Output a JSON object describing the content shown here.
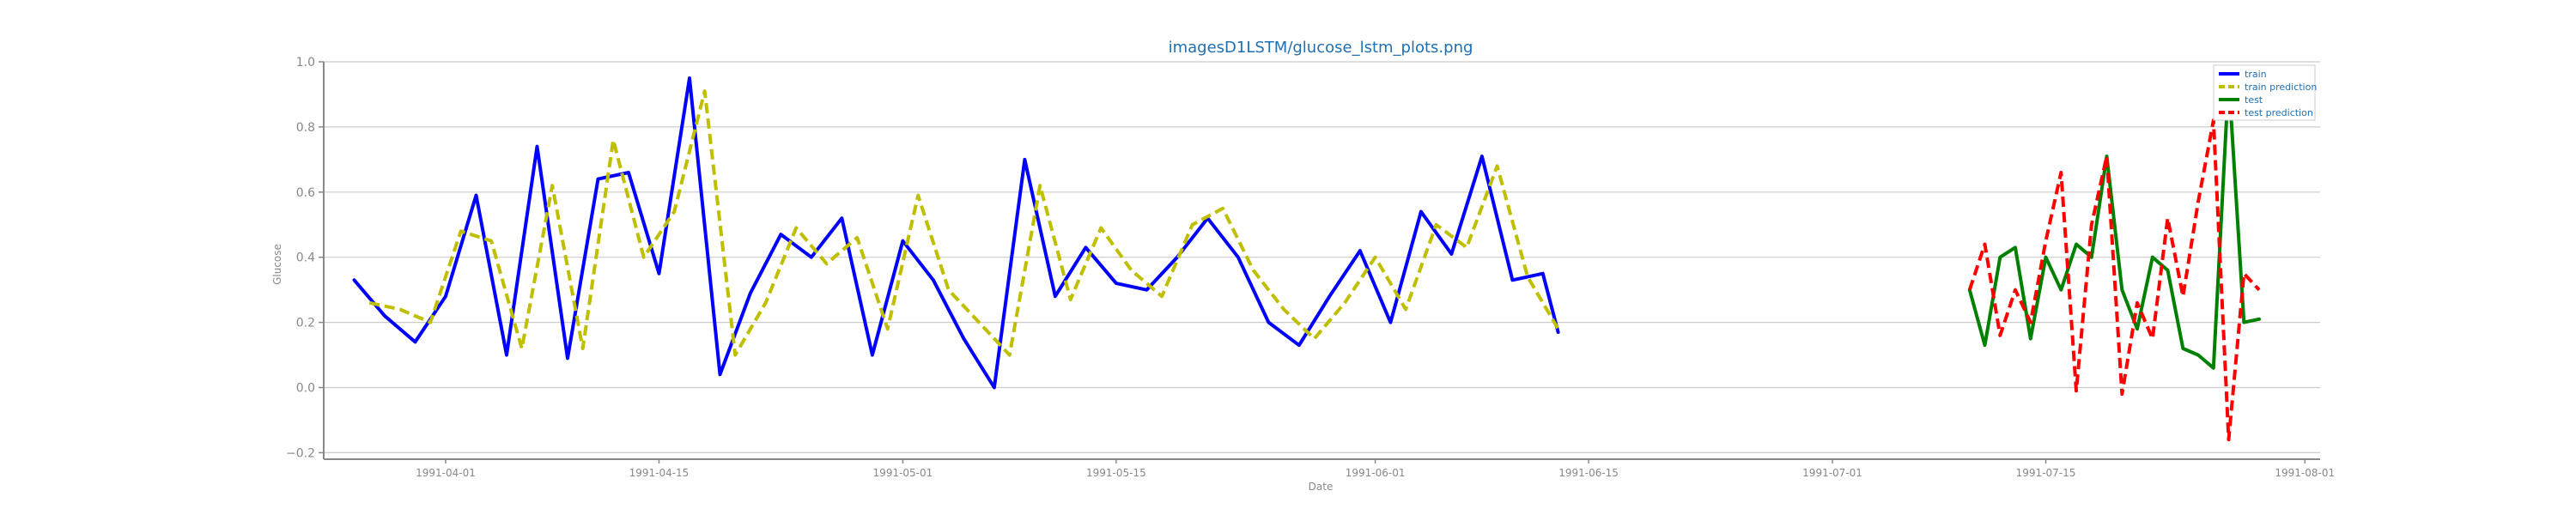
{
  "chart_data": {
    "type": "line",
    "title": "imagesD1LSTM/glucose_lstm_plots.png",
    "xlabel": "Date",
    "ylabel": "Glucose",
    "xlim": [
      "1991-03-24",
      "1991-08-02"
    ],
    "ylim": [
      -0.22,
      1.0
    ],
    "grid": "horizontal",
    "legend_position": "top-right",
    "x_tick_labels": [
      "1991-04-01",
      "1991-04-15",
      "1991-05-01",
      "1991-05-15",
      "1991-06-01",
      "1991-06-15",
      "1991-07-01",
      "1991-07-15",
      "1991-08-01"
    ],
    "y_ticks": [
      -0.2,
      0.0,
      0.2,
      0.4,
      0.6,
      0.8,
      1.0
    ],
    "y_tick_labels": [
      "−0.2",
      "0.0",
      "0.2",
      "0.4",
      "0.6",
      "0.8",
      "1.0"
    ],
    "series": [
      {
        "name": "train",
        "color": "#0000ff",
        "style": "solid",
        "x": [
          "1991-03-26",
          "1991-03-28",
          "1991-03-30",
          "1991-04-01",
          "1991-04-03",
          "1991-04-05",
          "1991-04-07",
          "1991-04-09",
          "1991-04-11",
          "1991-04-13",
          "1991-04-15",
          "1991-04-17",
          "1991-04-19",
          "1991-04-21",
          "1991-04-23",
          "1991-04-25",
          "1991-04-27",
          "1991-04-29",
          "1991-05-01",
          "1991-05-03",
          "1991-05-05",
          "1991-05-07",
          "1991-05-09",
          "1991-05-11",
          "1991-05-13",
          "1991-05-15",
          "1991-05-17",
          "1991-05-19",
          "1991-05-21",
          "1991-05-23",
          "1991-05-25",
          "1991-05-27",
          "1991-05-29",
          "1991-05-31",
          "1991-06-02",
          "1991-06-04",
          "1991-06-06",
          "1991-06-08",
          "1991-06-10",
          "1991-06-12",
          "1991-06-13"
        ],
        "y": [
          0.33,
          0.22,
          0.14,
          0.28,
          0.59,
          0.1,
          0.74,
          0.09,
          0.64,
          0.66,
          0.35,
          0.95,
          0.04,
          0.29,
          0.47,
          0.4,
          0.52,
          0.1,
          0.45,
          0.33,
          0.15,
          0.0,
          0.7,
          0.28,
          0.43,
          0.32,
          0.3,
          0.4,
          0.52,
          0.4,
          0.2,
          0.13,
          0.28,
          0.42,
          0.2,
          0.54,
          0.41,
          0.71,
          0.33,
          0.35,
          0.17
        ]
      },
      {
        "name": "train prediction",
        "color": "#bfbf00",
        "style": "dashed",
        "x": [
          "1991-03-27",
          "1991-03-29",
          "1991-03-31",
          "1991-04-02",
          "1991-04-04",
          "1991-04-06",
          "1991-04-08",
          "1991-04-10",
          "1991-04-12",
          "1991-04-14",
          "1991-04-16",
          "1991-04-18",
          "1991-04-20",
          "1991-04-22",
          "1991-04-24",
          "1991-04-26",
          "1991-04-28",
          "1991-04-30",
          "1991-05-02",
          "1991-05-04",
          "1991-05-06",
          "1991-05-08",
          "1991-05-10",
          "1991-05-12",
          "1991-05-14",
          "1991-05-16",
          "1991-05-18",
          "1991-05-20",
          "1991-05-22",
          "1991-05-24",
          "1991-05-26",
          "1991-05-28",
          "1991-05-30",
          "1991-06-01",
          "1991-06-03",
          "1991-06-05",
          "1991-06-07",
          "1991-06-09",
          "1991-06-11",
          "1991-06-13"
        ],
        "y": [
          0.26,
          0.24,
          0.2,
          0.48,
          0.45,
          0.12,
          0.62,
          0.12,
          0.76,
          0.4,
          0.54,
          0.91,
          0.1,
          0.26,
          0.49,
          0.38,
          0.46,
          0.18,
          0.59,
          0.3,
          0.2,
          0.1,
          0.62,
          0.27,
          0.49,
          0.36,
          0.28,
          0.5,
          0.55,
          0.36,
          0.24,
          0.15,
          0.26,
          0.4,
          0.24,
          0.5,
          0.43,
          0.68,
          0.34,
          0.18
        ]
      },
      {
        "name": "test",
        "color": "#008000",
        "style": "solid",
        "x": [
          "1991-07-10",
          "1991-07-11",
          "1991-07-12",
          "1991-07-13",
          "1991-07-14",
          "1991-07-15",
          "1991-07-16",
          "1991-07-17",
          "1991-07-18",
          "1991-07-19",
          "1991-07-20",
          "1991-07-21",
          "1991-07-22",
          "1991-07-23",
          "1991-07-24",
          "1991-07-25",
          "1991-07-26",
          "1991-07-27",
          "1991-07-28",
          "1991-07-29"
        ],
        "y": [
          0.3,
          0.13,
          0.4,
          0.43,
          0.15,
          0.4,
          0.3,
          0.44,
          0.4,
          0.71,
          0.3,
          0.18,
          0.4,
          0.36,
          0.12,
          0.1,
          0.06,
          0.95,
          0.2,
          0.21
        ]
      },
      {
        "name": "test prediction",
        "color": "#ff0000",
        "style": "dashed",
        "x": [
          "1991-07-10",
          "1991-07-11",
          "1991-07-12",
          "1991-07-13",
          "1991-07-14",
          "1991-07-15",
          "1991-07-16",
          "1991-07-17",
          "1991-07-18",
          "1991-07-19",
          "1991-07-20",
          "1991-07-21",
          "1991-07-22",
          "1991-07-23",
          "1991-07-24",
          "1991-07-25",
          "1991-07-26",
          "1991-07-27",
          "1991-07-28",
          "1991-07-29"
        ],
        "y": [
          0.3,
          0.44,
          0.16,
          0.3,
          0.2,
          0.45,
          0.66,
          -0.01,
          0.5,
          0.71,
          -0.02,
          0.26,
          0.15,
          0.52,
          0.28,
          0.57,
          0.82,
          -0.16,
          0.35,
          0.3
        ]
      }
    ]
  }
}
